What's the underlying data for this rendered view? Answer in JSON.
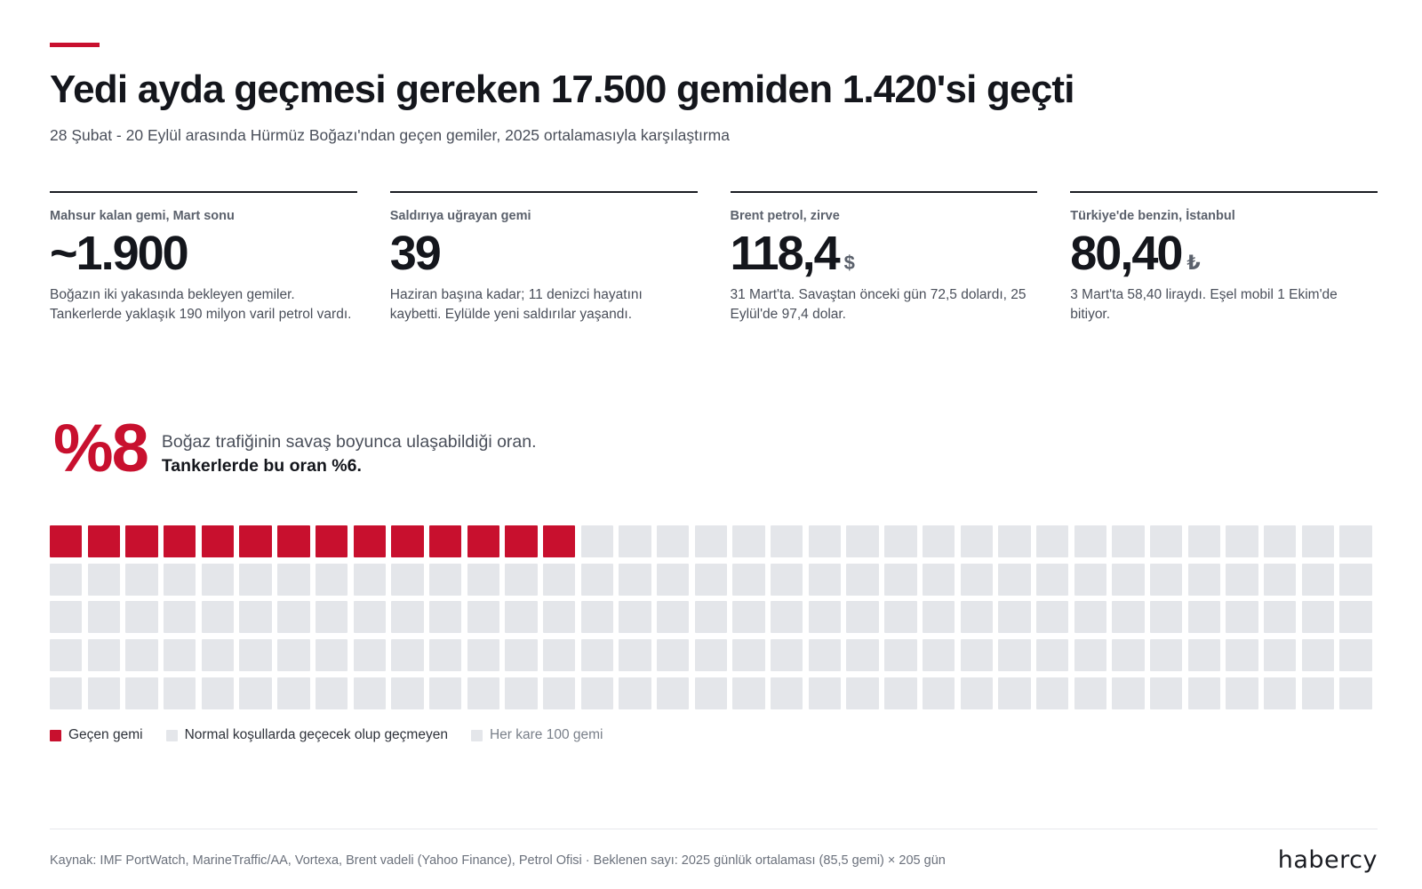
{
  "header": {
    "title": "Yedi ayda geçmesi gereken 17.500 gemiden 1.420'si geçti",
    "subtitle": "28 Şubat - 20 Eylül arasında Hürmüz Boğazı'ndan geçen gemiler, 2025 ortalamasıyla karşılaştırma"
  },
  "stats": [
    {
      "label": "Mahsur kalan gemi, Mart sonu",
      "value": "~1.900",
      "unit": "",
      "note": "Boğazın iki yakasında bekleyen gemiler. Tankerlerde yaklaşık 190 milyon varil petrol vardı."
    },
    {
      "label": "Saldırıya uğrayan gemi",
      "value": "39",
      "unit": "",
      "note": "Haziran başına kadar; 11 denizci hayatını kaybetti. Eylülde yeni saldırılar yaşandı."
    },
    {
      "label": "Brent petrol, zirve",
      "value": "118,4",
      "unit": "$",
      "note": "31 Mart'ta. Savaştan önceki gün 72,5 dolardı, 25 Eylül'de 97,4 dolar."
    },
    {
      "label": "Türkiye'de benzin, İstanbul",
      "value": "80,40",
      "unit": "₺",
      "note": "3 Mart'ta 58,40 liraydı. Eşel mobil 1 Ekim'de bitiyor."
    }
  ],
  "highlight": {
    "value": "%8",
    "line1": "Boğaz trafiğinin savaş boyunca ulaşabildiği oran.",
    "line2": "Tankerlerde bu oran %6."
  },
  "waffle": {
    "total_cells": 175,
    "filled_cells": 14,
    "columns": 35
  },
  "legend": {
    "passed": "Geçen gemi",
    "not_passed": "Normal koşullarda geçecek olup geçmeyen",
    "scale": "Her kare 100 gemi"
  },
  "colors": {
    "accent": "#c8102e",
    "empty": "#e4e6ea",
    "text": "#14161c"
  },
  "footer": {
    "source": "Kaynak: IMF PortWatch, MarineTraffic/AA, Vortexa, Brent vadeli (Yahoo Finance), Petrol Ofisi · Beklenen sayı: 2025 günlük ortalaması (85,5 gemi) × 205 gün",
    "logo": "habercy"
  }
}
